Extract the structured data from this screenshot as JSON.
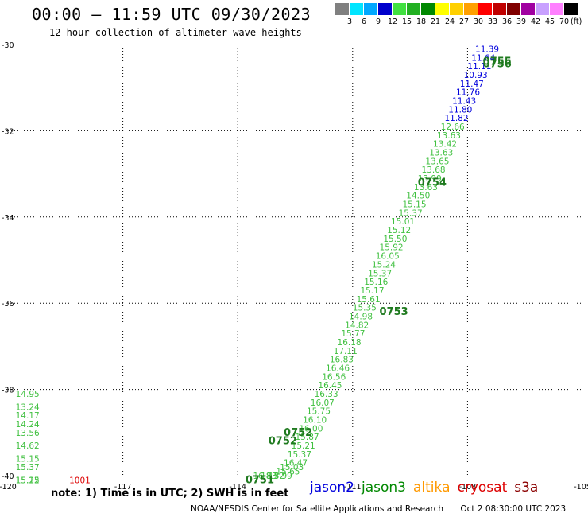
{
  "header": {
    "title": "00:00 – 11:59 UTC 09/30/2023",
    "subtitle": "12 hour collection of altimeter wave heights"
  },
  "scale": {
    "unit": "(ft)",
    "labels": [
      "3",
      "6",
      "9",
      "12",
      "15",
      "18",
      "21",
      "24",
      "27",
      "30",
      "33",
      "36",
      "39",
      "42",
      "45",
      "70"
    ],
    "colors": [
      "#808080",
      "#00e5ff",
      "#00a8ff",
      "#0000cc",
      "#40e040",
      "#22b022",
      "#008800",
      "#ffff00",
      "#ffd000",
      "#ffa000",
      "#ff0000",
      "#c00000",
      "#800000",
      "#a000a0",
      "#c8a0ff",
      "#ff80ff",
      "#000000"
    ]
  },
  "footer": {
    "note": "note: 1) Time is in UTC; 2) SWH is in feet",
    "legend": [
      {
        "label": "jason2",
        "color": "#0000dd"
      },
      {
        "label": "jason3",
        "color": "#008800"
      },
      {
        "label": "altika",
        "color": "#ff9900"
      },
      {
        "label": "cryosat",
        "color": "#dd0000"
      },
      {
        "label": "s3a",
        "color": "#8b0000"
      }
    ],
    "credit": "NOAA/NESDIS Center for Satellite Applications and Research",
    "timestamp": "Oct  2 08:30:00 UTC 2023"
  },
  "chart_data": {
    "type": "scatter",
    "title": "00:00 – 11:59 UTC 09/30/2023",
    "subtitle": "12 hour collection of altimeter wave heights",
    "xlabel": "",
    "ylabel": "",
    "xlim": [
      -120,
      -105
    ],
    "ylim": [
      -40,
      -30
    ],
    "x_ticks": [
      "-120",
      "-117",
      "-114",
      "-111",
      "-108",
      "-105"
    ],
    "y_ticks": [
      "-30",
      "-32",
      "-34",
      "-36",
      "-38",
      "-40"
    ],
    "grid": true,
    "swh_series": [
      {
        "name": "jason2",
        "color": "#0000dd",
        "points": [
          {
            "lon": -107.8,
            "lat": -30.1,
            "swh": "11.39"
          },
          {
            "lon": -107.9,
            "lat": -30.3,
            "swh": "11.64"
          },
          {
            "lon": -108.0,
            "lat": -30.5,
            "swh": "11.11"
          },
          {
            "lon": -108.1,
            "lat": -30.7,
            "swh": "10.93"
          },
          {
            "lon": -108.2,
            "lat": -30.9,
            "swh": "11.47"
          },
          {
            "lon": -108.3,
            "lat": -31.1,
            "swh": "11.76"
          },
          {
            "lon": -108.4,
            "lat": -31.3,
            "swh": "11.43"
          },
          {
            "lon": -108.5,
            "lat": -31.5,
            "swh": "11.80"
          },
          {
            "lon": -108.6,
            "lat": -31.7,
            "swh": "11.82"
          }
        ]
      },
      {
        "name": "jason3",
        "color": "#40c040",
        "points": [
          {
            "lon": -108.7,
            "lat": -31.9,
            "swh": "12.66"
          },
          {
            "lon": -108.8,
            "lat": -32.1,
            "swh": "13.63"
          },
          {
            "lon": -108.9,
            "lat": -32.3,
            "swh": "13.42"
          },
          {
            "lon": -109.0,
            "lat": -32.5,
            "swh": "13.63"
          },
          {
            "lon": -109.1,
            "lat": -32.7,
            "swh": "13.65"
          },
          {
            "lon": -109.2,
            "lat": -32.9,
            "swh": "13.68"
          },
          {
            "lon": -109.3,
            "lat": -33.1,
            "swh": "13.99"
          },
          {
            "lon": -109.4,
            "lat": -33.3,
            "swh": "13.63"
          },
          {
            "lon": -109.6,
            "lat": -33.5,
            "swh": "14.50"
          },
          {
            "lon": -109.7,
            "lat": -33.7,
            "swh": "15.15"
          },
          {
            "lon": -109.8,
            "lat": -33.9,
            "swh": "15.37"
          },
          {
            "lon": -110.0,
            "lat": -34.1,
            "swh": "15.01"
          },
          {
            "lon": -110.1,
            "lat": -34.3,
            "swh": "15.12"
          },
          {
            "lon": -110.2,
            "lat": -34.5,
            "swh": "15.50"
          },
          {
            "lon": -110.3,
            "lat": -34.7,
            "swh": "15.92"
          },
          {
            "lon": -110.4,
            "lat": -34.9,
            "swh": "16.05"
          },
          {
            "lon": -110.5,
            "lat": -35.1,
            "swh": "15.24"
          },
          {
            "lon": -110.6,
            "lat": -35.3,
            "swh": "15.37"
          },
          {
            "lon": -110.7,
            "lat": -35.5,
            "swh": "15.16"
          },
          {
            "lon": -110.8,
            "lat": -35.7,
            "swh": "15.17"
          },
          {
            "lon": -110.9,
            "lat": -35.9,
            "swh": "15.61"
          },
          {
            "lon": -111.0,
            "lat": -36.1,
            "swh": "15.35"
          },
          {
            "lon": -111.1,
            "lat": -36.3,
            "swh": "14.98"
          },
          {
            "lon": -111.2,
            "lat": -36.5,
            "swh": "14.82"
          },
          {
            "lon": -111.3,
            "lat": -36.7,
            "swh": "15.77"
          },
          {
            "lon": -111.4,
            "lat": -36.9,
            "swh": "16.18"
          },
          {
            "lon": -111.5,
            "lat": -37.1,
            "swh": "17.11"
          },
          {
            "lon": -111.6,
            "lat": -37.3,
            "swh": "16.83"
          },
          {
            "lon": -111.7,
            "lat": -37.5,
            "swh": "16.46"
          },
          {
            "lon": -111.8,
            "lat": -37.7,
            "swh": "16.56"
          },
          {
            "lon": -111.9,
            "lat": -37.9,
            "swh": "16.45"
          },
          {
            "lon": -112.0,
            "lat": -38.1,
            "swh": "16.33"
          },
          {
            "lon": -112.1,
            "lat": -38.3,
            "swh": "16.07"
          },
          {
            "lon": -112.2,
            "lat": -38.5,
            "swh": "15.75"
          },
          {
            "lon": -112.3,
            "lat": -38.7,
            "swh": "16.10"
          },
          {
            "lon": -112.4,
            "lat": -38.9,
            "swh": "16.00"
          },
          {
            "lon": -112.5,
            "lat": -39.1,
            "swh": "15.87"
          },
          {
            "lon": -112.6,
            "lat": -39.3,
            "swh": "15.21"
          },
          {
            "lon": -112.7,
            "lat": -39.5,
            "swh": "15.37"
          },
          {
            "lon": -112.8,
            "lat": -39.7,
            "swh": "16.47"
          },
          {
            "lon": -112.9,
            "lat": -39.8,
            "swh": "15.03"
          },
          {
            "lon": -113.0,
            "lat": -39.9,
            "swh": "15.65"
          },
          {
            "lon": -113.2,
            "lat": -40.0,
            "swh": "15.99"
          },
          {
            "lon": -113.4,
            "lat": -40.0,
            "swh": "18.32"
          },
          {
            "lon": -113.6,
            "lat": -40.0,
            "swh": "16.83"
          },
          {
            "lon": -119.8,
            "lat": -38.1,
            "swh": "14.95"
          },
          {
            "lon": -119.8,
            "lat": -38.4,
            "swh": "13.24"
          },
          {
            "lon": -119.8,
            "lat": -38.6,
            "swh": "14.17"
          },
          {
            "lon": -119.8,
            "lat": -38.8,
            "swh": "14.24"
          },
          {
            "lon": -119.8,
            "lat": -39.0,
            "swh": "13.56"
          },
          {
            "lon": -119.8,
            "lat": -39.3,
            "swh": "14.62"
          },
          {
            "lon": -119.8,
            "lat": -39.6,
            "swh": "15.15"
          },
          {
            "lon": -119.8,
            "lat": -39.8,
            "swh": "15.37"
          },
          {
            "lon": -119.8,
            "lat": -40.1,
            "swh": "15.12"
          },
          {
            "lon": -119.8,
            "lat": -40.1,
            "swh": "15.25"
          }
        ]
      },
      {
        "name": "cryosat",
        "color": "#dd0000",
        "points": [
          {
            "lon": -118.4,
            "lat": -40.1,
            "swh": "1001"
          }
        ]
      }
    ],
    "time_labels": [
      {
        "lon": -107.6,
        "lat": -30.4,
        "text": "0755"
      },
      {
        "lon": -107.6,
        "lat": -30.45,
        "text": "0756"
      },
      {
        "lon": -109.3,
        "lat": -33.2,
        "text": "0754"
      },
      {
        "lon": -110.3,
        "lat": -36.2,
        "text": "0753"
      },
      {
        "lon": -112.8,
        "lat": -39.0,
        "text": "0752"
      },
      {
        "lon": -113.2,
        "lat": -39.2,
        "text": "0752"
      },
      {
        "lon": -113.8,
        "lat": -40.1,
        "text": "0751"
      }
    ]
  }
}
